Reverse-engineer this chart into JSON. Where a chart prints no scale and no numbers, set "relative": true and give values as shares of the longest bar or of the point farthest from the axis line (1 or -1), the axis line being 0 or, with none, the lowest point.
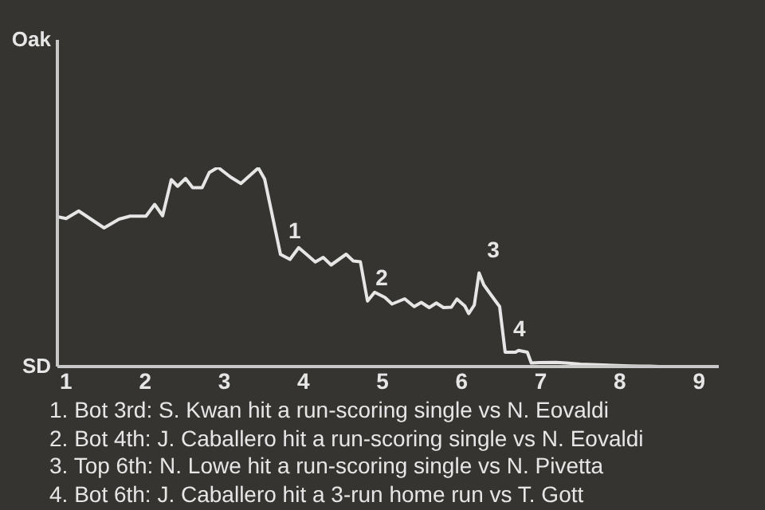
{
  "chart_data": {
    "type": "line",
    "relative": true,
    "x": [
      0.89,
      1,
      1.16,
      1.48,
      1.67,
      1.81,
      2.01,
      2.12,
      2.22,
      2.33,
      2.41,
      2.51,
      2.6,
      2.72,
      2.81,
      2.92,
      3.08,
      3.21,
      3.43,
      3.51,
      3.71,
      3.83,
      3.94,
      4.04,
      4.15,
      4.25,
      4.35,
      4.54,
      4.63,
      4.72,
      4.81,
      4.9,
      5.03,
      5.12,
      5.28,
      5.4,
      5.49,
      5.59,
      5.68,
      5.77,
      5.87,
      5.94,
      6.04,
      6.09,
      6.16,
      6.22,
      6.28,
      6.38,
      6.48,
      6.55,
      6.68,
      6.72,
      6.83,
      6.88,
      6.98,
      7.19,
      7.32,
      7.5,
      7.64,
      7.79,
      7.98,
      8.13,
      8.26,
      8.38,
      8.5,
      8.63,
      8.75,
      8.88,
      9,
      9.13,
      9.23
    ],
    "series": [
      {
        "color": "#e6e6e6",
        "values": [
          0.752,
          0.743,
          0.781,
          0.696,
          0.74,
          0.755,
          0.755,
          0.814,
          0.757,
          0.938,
          0.905,
          0.944,
          0.898,
          0.898,
          0.974,
          1,
          0.951,
          0.919,
          0.997,
          0.941,
          0.563,
          0.538,
          0.597,
          0.563,
          0.525,
          0.548,
          0.51,
          0.564,
          0.53,
          0.526,
          0.329,
          0.373,
          0.347,
          0.314,
          0.34,
          0.301,
          0.322,
          0.296,
          0.319,
          0.296,
          0.298,
          0.339,
          0.304,
          0.266,
          0.309,
          0.47,
          0.41,
          0.355,
          0.301,
          0.072,
          0.072,
          0.081,
          0.072,
          0.018,
          0.02,
          0.021,
          0.018,
          0.012,
          0.01,
          0.008,
          0.005,
          0.003,
          0.002,
          0.002,
          0,
          0,
          0,
          0,
          0,
          0,
          0
        ]
      }
    ],
    "xlim": [
      0.89,
      9.25
    ],
    "xticks": [
      1,
      2,
      3,
      4,
      5,
      6,
      7,
      8,
      9
    ],
    "marker": "none",
    "line_style": "solid",
    "legend": false,
    "annotations": [
      {
        "text": "1",
        "x": 3.71,
        "y": 0.563
      },
      {
        "text": "2",
        "x": 4.81,
        "y": 0.329
      },
      {
        "text": "3",
        "x": 6.22,
        "y": 0.47
      },
      {
        "text": "4",
        "x": 6.55,
        "y": 0.072
      },
      "Oak",
      "SD",
      "1. Bot 3rd: S. Kwan hit a run-scoring single vs N. Eovaldi",
      "2. Bot 4th: J. Caballero hit a run-scoring single vs N. Eovaldi",
      "3. Top 6th: N. Lowe hit a run-scoring single vs N. Pivetta",
      "4. Bot 6th: J. Caballero hit a 3-run home run vs T. Gott"
    ]
  }
}
